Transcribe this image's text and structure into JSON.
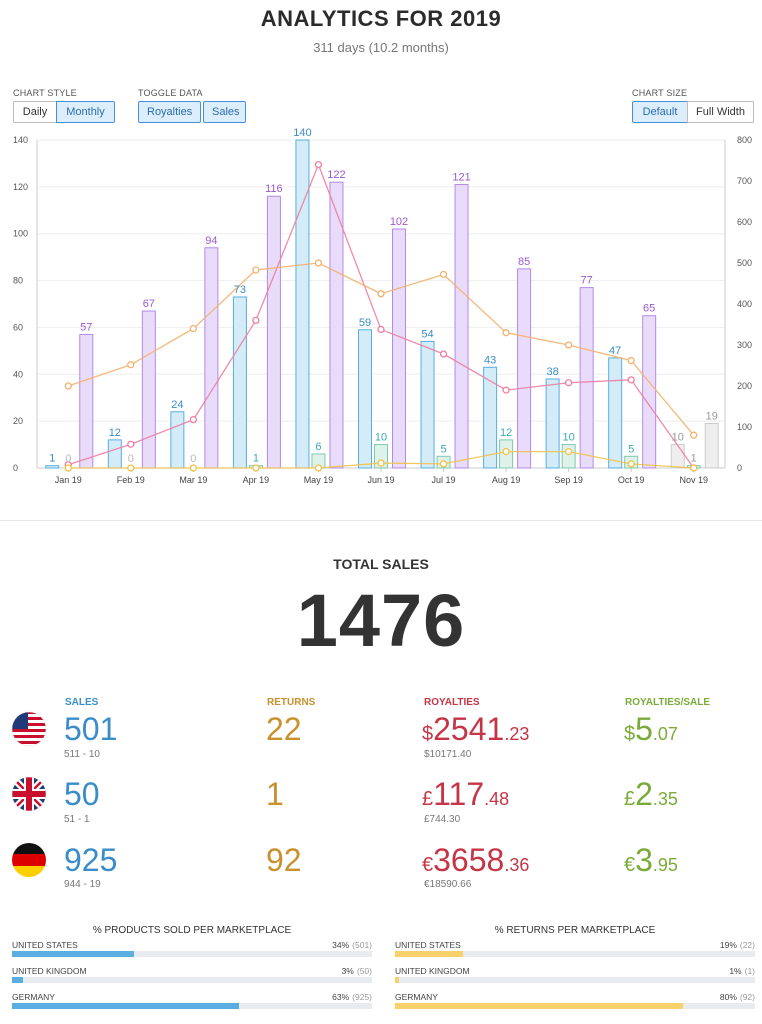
{
  "header": {
    "title": "ANALYTICS FOR 2019",
    "subtitle": "311 days (10.2 months)"
  },
  "controls": {
    "chart_style": {
      "label": "CHART STYLE",
      "options": [
        "Daily",
        "Monthly"
      ],
      "active": "Monthly"
    },
    "toggle_data": {
      "label": "TOGGLE DATA",
      "options": [
        "Royalties",
        "Sales"
      ],
      "active": [
        "Royalties",
        "Sales"
      ]
    },
    "chart_size": {
      "label": "CHART SIZE",
      "options": [
        "Default",
        "Full Width"
      ],
      "active": "Default"
    }
  },
  "chart_data": {
    "type": "bar",
    "categories": [
      "Jan 19",
      "Feb 19",
      "Mar 19",
      "Apr 19",
      "May 19",
      "Jun 19",
      "Jul 19",
      "Aug 19",
      "Sep 19",
      "Oct 19",
      "Nov 19"
    ],
    "left_axis": {
      "ylim": [
        0,
        140
      ],
      "ticks": [
        0,
        20,
        40,
        60,
        80,
        100,
        120,
        140
      ]
    },
    "right_axis": {
      "ylim": [
        0,
        800
      ],
      "ticks": [
        0,
        100,
        200,
        300,
        400,
        500,
        600,
        700,
        800
      ]
    },
    "series": [
      {
        "kind": "bar",
        "axis": "left",
        "color": "#5aaee0",
        "fill": "#d4ebf8",
        "label_color": "#3a8dc9",
        "values": [
          1,
          12,
          24,
          73,
          140,
          59,
          54,
          43,
          38,
          47,
          10
        ]
      },
      {
        "kind": "bar",
        "axis": "left",
        "color": "#b48ae8",
        "fill": "#e9dcfb",
        "label_color": "#9b59d0",
        "values": [
          57,
          67,
          94,
          116,
          122,
          102,
          121,
          85,
          77,
          65,
          19
        ]
      },
      {
        "kind": "bar",
        "axis": "left",
        "color": "#7fc8b0",
        "fill": "#dff2ea",
        "label_color": "#3aaab0",
        "values": [
          0,
          0,
          0,
          1,
          6,
          10,
          5,
          12,
          10,
          5,
          1
        ]
      },
      {
        "kind": "line",
        "axis": "right",
        "color": "#f07da0",
        "values": [
          8,
          58,
          118,
          360,
          740,
          338,
          278,
          190,
          208,
          215,
          0
        ]
      },
      {
        "kind": "line",
        "axis": "right",
        "color": "#f4b06c",
        "values": [
          200,
          252,
          340,
          483,
          500,
          425,
          472,
          330,
          300,
          262,
          80
        ]
      },
      {
        "kind": "line",
        "axis": "right",
        "color": "#f0c24a",
        "values": [
          0,
          0,
          0,
          0,
          0,
          12,
          10,
          40,
          40,
          10,
          0
        ]
      }
    ],
    "zero_labels": {
      "color": "#bbbbbb",
      "values": [
        "0",
        "0",
        "0"
      ]
    }
  },
  "totals": {
    "label": "TOTAL SALES",
    "value": "1476"
  },
  "columns": {
    "sales": "SALES",
    "returns": "RETURNS",
    "royalties": "ROYALTIES",
    "royalties_per_sale": "ROYALTIES/SALE"
  },
  "markets": [
    {
      "flag": "us-flag-icon",
      "sales": "501",
      "sales_sub": "511 - 10",
      "returns": "22",
      "roy_cur": "$",
      "roy_main": "2541",
      "roy_cents": ".23",
      "roy_sub": "$10171.40",
      "rps_cur": "$",
      "rps_main": "5",
      "rps_cents": ".07"
    },
    {
      "flag": "uk-flag-icon",
      "sales": "50",
      "sales_sub": "51 - 1",
      "returns": "1",
      "roy_cur": "£",
      "roy_main": "117",
      "roy_cents": ".48",
      "roy_sub": "£744.30",
      "rps_cur": "£",
      "rps_main": "2",
      "rps_cents": ".35"
    },
    {
      "flag": "de-flag-icon",
      "sales": "925",
      "sales_sub": "944 - 19",
      "returns": "92",
      "roy_cur": "€",
      "roy_main": "3658",
      "roy_cents": ".36",
      "roy_sub": "€18590.66",
      "rps_cur": "€",
      "rps_main": "3",
      "rps_cents": ".95"
    }
  ],
  "products_sold": {
    "title": "% PRODUCTS SOLD PER MARKETPLACE",
    "color": "#5aaee0",
    "rows": [
      {
        "name": "UNITED STATES",
        "pct": "34%",
        "count": "(501)",
        "fraction": 0.34
      },
      {
        "name": "UNITED KINGDOM",
        "pct": "3%",
        "count": "(50)",
        "fraction": 0.03
      },
      {
        "name": "GERMANY",
        "pct": "63%",
        "count": "(925)",
        "fraction": 0.63
      }
    ]
  },
  "returns_per": {
    "title": "% RETURNS PER MARKETPLACE",
    "color": "#f7d26a",
    "rows": [
      {
        "name": "UNITED STATES",
        "pct": "19%",
        "count": "(22)",
        "fraction": 0.19
      },
      {
        "name": "UNITED KINGDOM",
        "pct": "1%",
        "count": "(1)",
        "fraction": 0.01
      },
      {
        "name": "GERMANY",
        "pct": "80%",
        "count": "(92)",
        "fraction": 0.8
      }
    ]
  }
}
